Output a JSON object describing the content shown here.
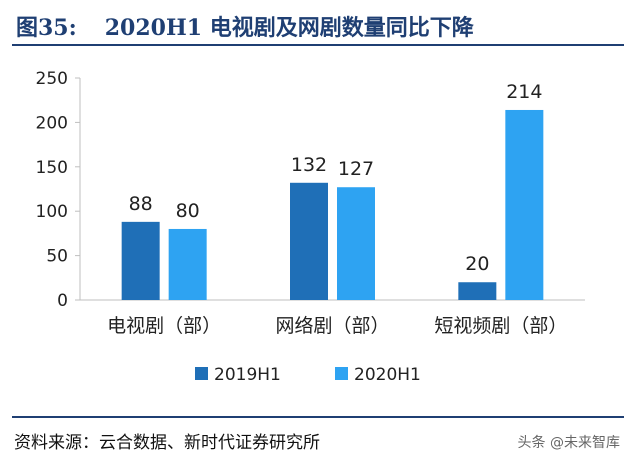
{
  "header": {
    "figure_label": "图35:",
    "figure_title": "2020H1 电视剧及网剧数量同比下降"
  },
  "chart_data": {
    "type": "bar",
    "categories": [
      "电视剧（部）",
      "网络剧（部）",
      "短视频剧（部）"
    ],
    "series": [
      {
        "name": "2019H1",
        "values": [
          88,
          132,
          20
        ],
        "color": "#1f6fb7"
      },
      {
        "name": "2020H1",
        "values": [
          80,
          127,
          214
        ],
        "color": "#2ea3f2"
      }
    ],
    "yticks": [
      0,
      50,
      100,
      150,
      200,
      250
    ],
    "ylim": [
      0,
      250
    ],
    "grid": false,
    "legend": "bottom-center",
    "data_labels": true
  },
  "footer": {
    "source": "资料来源：云合数据、新时代证券研究所",
    "watermark": "头条 @未来智库"
  }
}
